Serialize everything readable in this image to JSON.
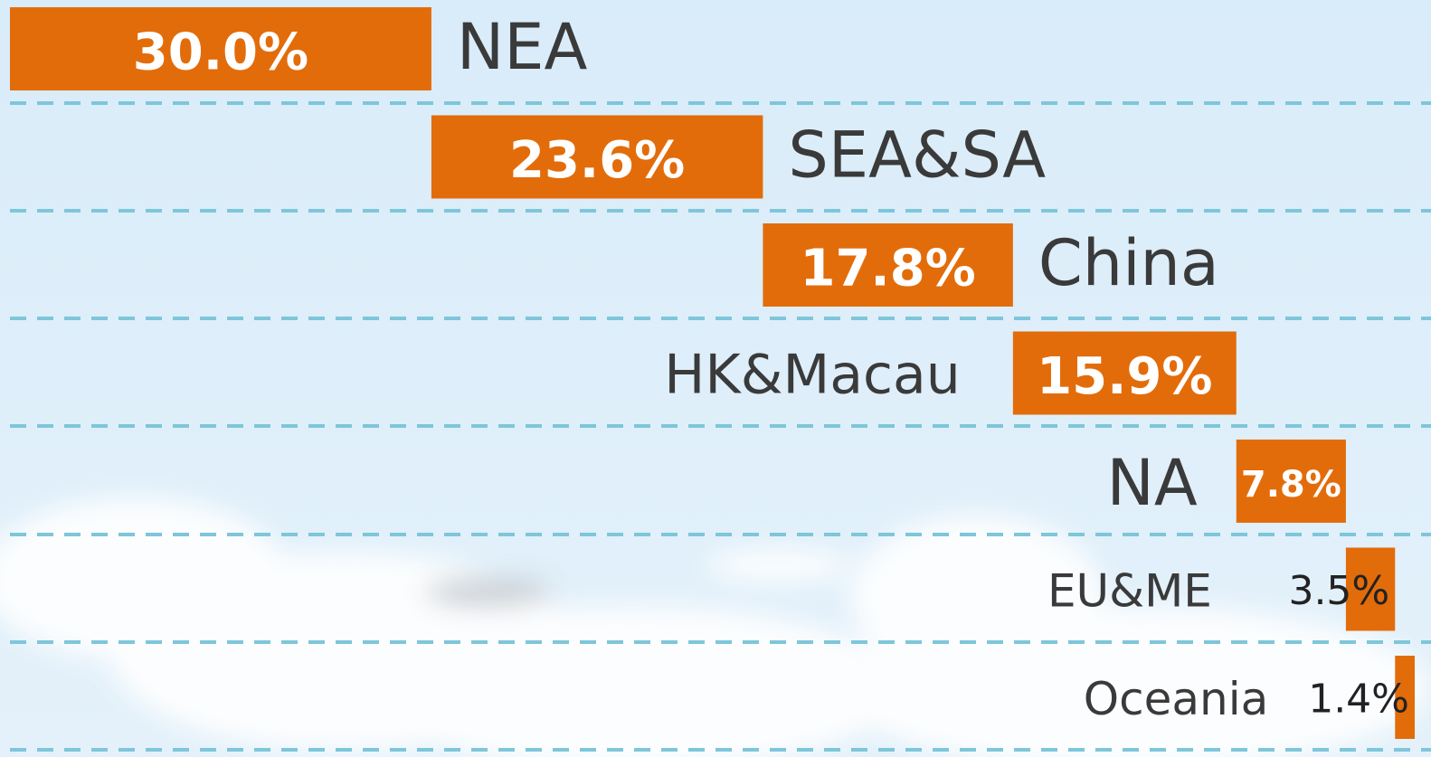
{
  "chart_data": {
    "type": "waterfall",
    "categories": [
      "NEA",
      "SEA&SA",
      "China",
      "HK&Macau",
      "NA",
      "EU&ME",
      "Oceania"
    ],
    "values": [
      30.0,
      23.6,
      17.8,
      15.9,
      7.8,
      3.5,
      1.4
    ],
    "value_labels": [
      "30.0%",
      "23.6%",
      "17.8%",
      "15.9%",
      "7.8%",
      "3.5%",
      "1.4%"
    ],
    "color": "#e36c0a",
    "xlim": [
      0,
      100
    ]
  }
}
